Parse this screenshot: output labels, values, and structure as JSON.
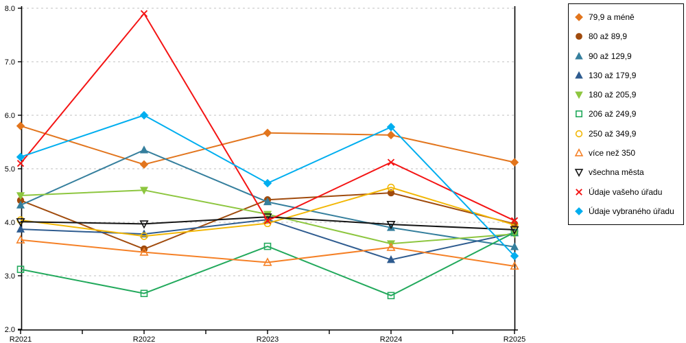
{
  "chart_data": {
    "type": "line",
    "title": "",
    "x_categories": [
      "R2021",
      "R2022",
      "R2023",
      "R2024",
      "R2025"
    ],
    "ylim": [
      2.0,
      8.0
    ],
    "ytick_step": 1.0,
    "ytick_labels": [
      "2.0",
      "3.0",
      "4.0",
      "5.0",
      "6.0",
      "7.0",
      "8.0"
    ],
    "grid": "horizontal-dashed",
    "grid_color": "#bfbfbf",
    "axis_color": "#000000",
    "legend_position": "right",
    "series": [
      {
        "name": "79,9 a méně",
        "color": "#E2751D",
        "marker": "diamond",
        "filled": true,
        "values": [
          5.8,
          5.08,
          5.67,
          5.63,
          5.12
        ]
      },
      {
        "name": "80 až 89,9",
        "color": "#A04B0D",
        "marker": "circle",
        "filled": true,
        "values": [
          4.41,
          3.5,
          4.42,
          4.55,
          3.97
        ]
      },
      {
        "name": "90 až 129,9",
        "color": "#357F9D",
        "marker": "triangle-up",
        "filled": true,
        "values": [
          4.32,
          5.35,
          4.38,
          3.9,
          3.54
        ]
      },
      {
        "name": "130 až 179,9",
        "color": "#2E5B8F",
        "marker": "triangle-up",
        "filled": true,
        "values": [
          3.87,
          3.78,
          4.05,
          3.3,
          3.8
        ]
      },
      {
        "name": "180 až 205,9",
        "color": "#8DC63F",
        "marker": "triangle-down",
        "filled": true,
        "values": [
          4.5,
          4.6,
          4.15,
          3.6,
          3.78
        ]
      },
      {
        "name": "206 až 249,9",
        "color": "#22A95C",
        "marker": "square",
        "filled": false,
        "values": [
          3.12,
          2.67,
          3.55,
          2.63,
          3.81
        ]
      },
      {
        "name": "250 až 349,9",
        "color": "#F2B705",
        "marker": "circle",
        "filled": false,
        "values": [
          4.04,
          3.74,
          3.98,
          4.65,
          3.95
        ]
      },
      {
        "name": "více než 350",
        "color": "#F58026",
        "marker": "triangle-up",
        "filled": false,
        "values": [
          3.67,
          3.44,
          3.25,
          3.53,
          3.18
        ]
      },
      {
        "name": "všechna města",
        "color": "#141414",
        "marker": "triangle-down",
        "filled": false,
        "values": [
          4.01,
          3.97,
          4.1,
          3.96,
          3.86
        ]
      },
      {
        "name": "Údaje vašeho úřadu",
        "color": "#F41414",
        "marker": "x",
        "filled": false,
        "values": [
          5.1,
          7.9,
          4.03,
          5.12,
          4.03
        ]
      },
      {
        "name": "Údaje vybraného úřadu",
        "color": "#00AEEF",
        "marker": "diamond",
        "filled": true,
        "values": [
          5.22,
          6.0,
          4.73,
          5.78,
          3.37
        ]
      }
    ]
  }
}
